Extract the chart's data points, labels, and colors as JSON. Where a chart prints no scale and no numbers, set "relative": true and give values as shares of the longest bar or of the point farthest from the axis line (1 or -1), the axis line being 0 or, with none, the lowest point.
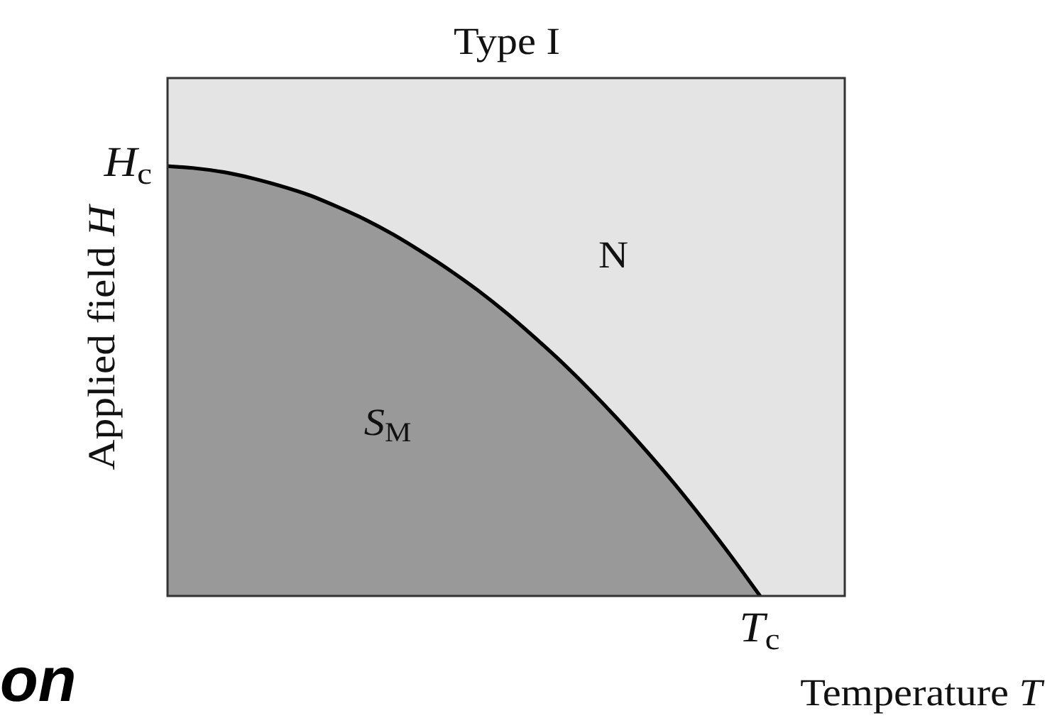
{
  "chart_data": {
    "type": "area",
    "title": "Type I",
    "xlabel": "Temperature T",
    "ylabel": "Applied field H",
    "relative": true,
    "categories": [
      null,
      null,
      null,
      null,
      null,
      null,
      null,
      null,
      null,
      null,
      null,
      null,
      null,
      null,
      null,
      null,
      null,
      null,
      null,
      null,
      null,
      null,
      null,
      null,
      null
    ],
    "series": [
      {
        "name": "S$_{M}$",
        "color": "#999999",
        "values": [
          1,
          0.995,
          0.986,
          0.972,
          0.954,
          0.933,
          0.906,
          0.876,
          0.841,
          0.801,
          0.758,
          0.711,
          0.659,
          0.602,
          0.542,
          0.477,
          0.408,
          0.335,
          0.258,
          0.176,
          0.09,
          0,
          null,
          null,
          null
        ]
      }
    ],
    "annotations": [
      "H$_{c}$",
      "N",
      {
        "text": "T$_{c}$",
        "y": 0
      },
      "on"
    ]
  }
}
